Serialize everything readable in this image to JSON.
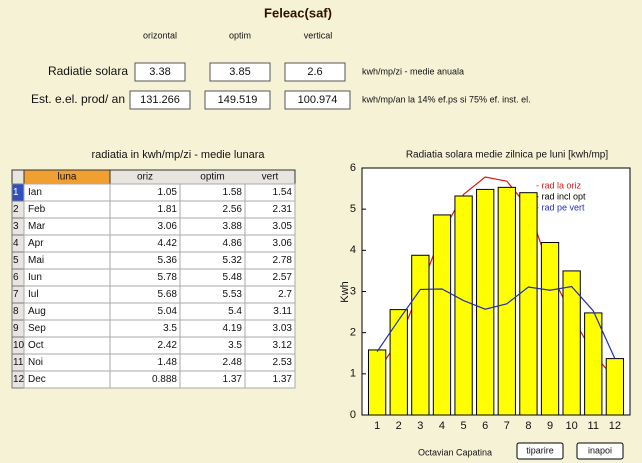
{
  "title": "Feleac(saf)",
  "columns": [
    "orizontal",
    "optim",
    "vertical"
  ],
  "rows": [
    {
      "label": "Radiatie solara",
      "values": [
        3.38,
        3.85,
        2.6
      ],
      "unit": "kwh/mp/zi - medie anuala"
    },
    {
      "label": "Est. e.el. prod/ an",
      "values": [
        131.266,
        149.519,
        100.974
      ],
      "unit": "kwh/mp/an la 14% ef.ps si 75% ef. inst. el."
    }
  ],
  "table": {
    "title": "radiatia in kwh/mp/zi - medie lunara",
    "header": [
      "luna",
      "oriz",
      "optim",
      "vert"
    ],
    "rows": [
      [
        1,
        "Ian",
        1.05,
        1.58,
        1.54
      ],
      [
        2,
        "Feb",
        1.81,
        2.56,
        2.31
      ],
      [
        3,
        "Mar",
        3.06,
        3.88,
        3.05
      ],
      [
        4,
        "Apr",
        4.42,
        4.86,
        3.06
      ],
      [
        5,
        "Mai",
        5.36,
        5.32,
        2.78
      ],
      [
        6,
        "Iun",
        5.78,
        5.48,
        2.57
      ],
      [
        7,
        "Iul",
        5.68,
        5.53,
        2.7
      ],
      [
        8,
        "Aug",
        5.04,
        5.4,
        3.11
      ],
      [
        9,
        "Sep",
        3.5,
        4.19,
        3.03
      ],
      [
        10,
        "Oct",
        2.42,
        3.5,
        3.12
      ],
      [
        11,
        "Noi",
        1.48,
        2.48,
        2.53
      ],
      [
        12,
        "Dec",
        0.888,
        1.37,
        1.37
      ]
    ]
  },
  "chart": {
    "type": "bar",
    "title": "Radiatia solara medie zilnica pe luni [kwh/mp]",
    "ylabel": "Kwh",
    "x": [
      1,
      2,
      3,
      4,
      5,
      6,
      7,
      8,
      9,
      10,
      11,
      12
    ],
    "xlim": [
      0.3,
      12.7
    ],
    "xticks": [
      1,
      2,
      3,
      4,
      5,
      6,
      7,
      8,
      9,
      10,
      11,
      12
    ],
    "ylim": [
      0,
      6
    ],
    "yticks": [
      0,
      1,
      2,
      3,
      4,
      5,
      6
    ],
    "series": [
      {
        "name": "- rad la oriz",
        "type": "line",
        "color": "#e01818",
        "values": [
          1.05,
          1.81,
          3.06,
          4.42,
          5.36,
          5.78,
          5.68,
          5.04,
          3.5,
          2.42,
          1.48,
          0.888
        ]
      },
      {
        "name": "- rad incl opt",
        "type": "bar",
        "color": "#000000",
        "fill": "#ffff00",
        "values": [
          1.58,
          2.56,
          3.88,
          4.86,
          5.32,
          5.48,
          5.53,
          5.4,
          4.19,
          3.5,
          2.48,
          1.37
        ]
      },
      {
        "name": "- rad pe vert",
        "type": "line",
        "color": "#2030b0",
        "values": [
          1.54,
          2.31,
          3.05,
          3.06,
          2.78,
          2.57,
          2.7,
          3.11,
          3.03,
          3.12,
          2.53,
          1.37
        ]
      }
    ]
  },
  "footer": "Octavian Capatina",
  "buttons": [
    "tiparire",
    "inapoi"
  ]
}
